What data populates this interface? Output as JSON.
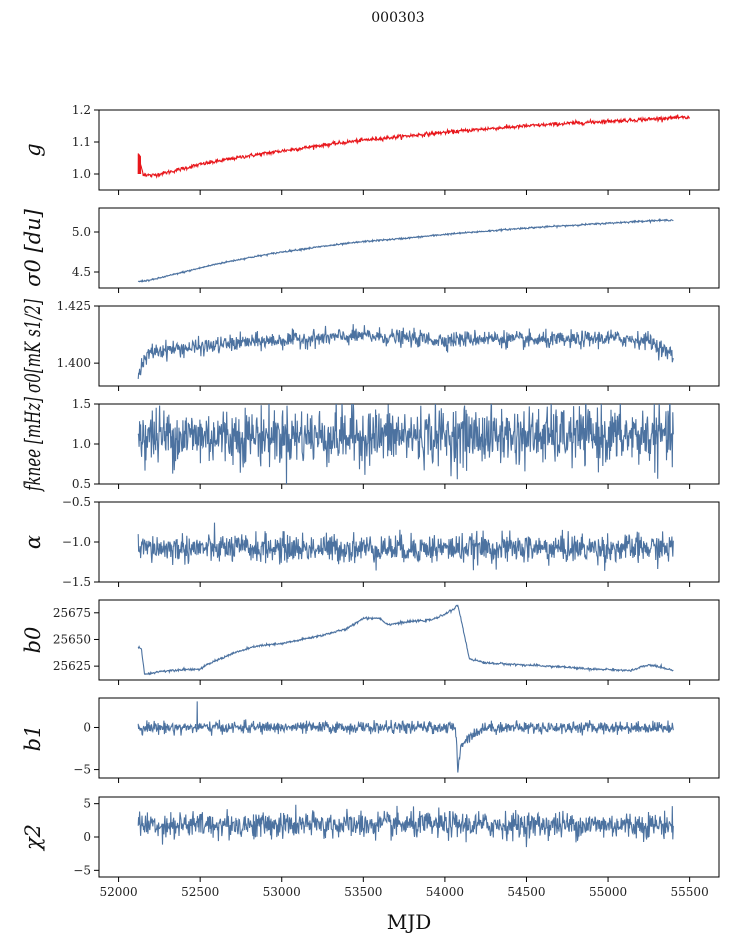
{
  "figure": {
    "title": "000303",
    "xlabel": "MJD"
  },
  "chart_data": [
    {
      "type": "line",
      "ylabel": "g",
      "ylim": [
        0.95,
        1.2
      ],
      "yticks": [
        1.0,
        1.1,
        1.2
      ],
      "ytick_labels": [
        "1.0",
        "1.1",
        "1.2"
      ],
      "xlim": [
        51880,
        55680
      ],
      "xticks": [
        52000,
        52500,
        53000,
        53500,
        54000,
        54500,
        55000,
        55500
      ],
      "show_xtick_labels": false,
      "series": [
        {
          "color": "#e8161b",
          "x": [
            52120,
            52150,
            52200,
            52300,
            52500,
            52750,
            53000,
            53250,
            53500,
            53750,
            54000,
            54250,
            54500,
            54750,
            55000,
            55250,
            55400,
            55500
          ],
          "y": [
            1.06,
            1.0,
            0.995,
            1.005,
            1.03,
            1.053,
            1.072,
            1.09,
            1.106,
            1.118,
            1.13,
            1.141,
            1.15,
            1.158,
            1.165,
            1.171,
            1.176,
            1.176
          ],
          "noise": 0.003
        }
      ],
      "overlays": [
        {
          "color": "#e8161b",
          "x_from": 52120,
          "x_to": 52135,
          "y_from": 1.0,
          "y_to": 1.065
        }
      ]
    },
    {
      "type": "line",
      "ylabel": "σ0 [du]",
      "ylim": [
        4.3,
        5.3
      ],
      "yticks": [
        4.5,
        5.0
      ],
      "ytick_labels": [
        "4.5",
        "5.0"
      ],
      "xlim": [
        51880,
        55680
      ],
      "xticks": [
        52000,
        52500,
        53000,
        53500,
        54000,
        54500,
        55000,
        55500
      ],
      "show_xtick_labels": false,
      "series": [
        {
          "color": "#4c72a0",
          "x": [
            52120,
            52200,
            52400,
            52600,
            52800,
            53000,
            53250,
            53500,
            53750,
            54000,
            54250,
            54500,
            54750,
            55000,
            55250,
            55400
          ],
          "y": [
            4.38,
            4.4,
            4.5,
            4.6,
            4.68,
            4.75,
            4.82,
            4.88,
            4.92,
            4.97,
            5.01,
            5.05,
            5.08,
            5.11,
            5.14,
            5.15
          ],
          "noise": 0.005
        }
      ]
    },
    {
      "type": "line",
      "ylabel": "σ0[mK s1/2]",
      "ylim": [
        1.39,
        1.425
      ],
      "yticks": [
        1.4,
        1.425
      ],
      "ytick_labels": [
        "1.400",
        "1.425"
      ],
      "xlim": [
        51880,
        55680
      ],
      "xticks": [
        52000,
        52500,
        53000,
        53500,
        54000,
        54500,
        55000,
        55500
      ],
      "show_xtick_labels": false,
      "series": [
        {
          "color": "#4c72a0",
          "x": [
            52120,
            52150,
            52200,
            52300,
            52500,
            52750,
            53000,
            53250,
            53500,
            53750,
            54000,
            54250,
            54500,
            54750,
            55000,
            55250,
            55400
          ],
          "y": [
            1.394,
            1.4,
            1.405,
            1.406,
            1.407,
            1.409,
            1.41,
            1.411,
            1.412,
            1.411,
            1.41,
            1.411,
            1.41,
            1.41,
            1.411,
            1.41,
            1.403
          ],
          "noise": 0.0018
        }
      ]
    },
    {
      "type": "line",
      "ylabel": "fknee [mHz]",
      "ylim": [
        0.5,
        1.5
      ],
      "yticks": [
        0.5,
        1.0,
        1.5
      ],
      "ytick_labels": [
        "0.5",
        "1.0",
        "1.5"
      ],
      "xlim": [
        51880,
        55680
      ],
      "xticks": [
        52000,
        52500,
        53000,
        53500,
        54000,
        54500,
        55000,
        55500
      ],
      "show_xtick_labels": false,
      "series": [
        {
          "color": "#4c72a0",
          "x": [
            52120,
            55400
          ],
          "y": [
            1.1,
            1.1
          ],
          "noise": 0.18
        }
      ]
    },
    {
      "type": "line",
      "ylabel": "α",
      "ylim": [
        -1.5,
        -0.5
      ],
      "yticks": [
        -1.5,
        -1.0,
        -0.5
      ],
      "ytick_labels": [
        "−1.5",
        "−1.0",
        "−0.5"
      ],
      "xlim": [
        51880,
        55680
      ],
      "xticks": [
        52000,
        52500,
        53000,
        53500,
        54000,
        54500,
        55000,
        55500
      ],
      "show_xtick_labels": false,
      "series": [
        {
          "color": "#4c72a0",
          "x": [
            52120,
            55400
          ],
          "y": [
            -1.08,
            -1.08
          ],
          "noise": 0.09
        }
      ]
    },
    {
      "type": "line",
      "ylabel": "b0",
      "ylim": [
        25612,
        25687
      ],
      "yticks": [
        25625,
        25650,
        25675
      ],
      "ytick_labels": [
        "25625",
        "25650",
        "25675"
      ],
      "xlim": [
        51880,
        55680
      ],
      "xticks": [
        52000,
        52500,
        53000,
        53500,
        54000,
        54500,
        55000,
        55500
      ],
      "show_xtick_labels": false,
      "series": [
        {
          "color": "#4c72a0",
          "x": [
            52120,
            52140,
            52160,
            52250,
            52400,
            52500,
            52550,
            52700,
            52850,
            53000,
            53250,
            53400,
            53500,
            53600,
            53650,
            53800,
            53900,
            53950,
            54050,
            54080,
            54100,
            54150,
            54250,
            54500,
            54750,
            54900,
            55000,
            55100,
            55150,
            55200,
            55250,
            55300,
            55400
          ],
          "y": [
            25643,
            25641,
            25617,
            25620,
            25622,
            25622,
            25627,
            25637,
            25644,
            25646,
            25654,
            25660,
            25670,
            25670,
            25664,
            25667,
            25668,
            25670,
            25678,
            25682,
            25668,
            25632,
            25628,
            25626,
            25624,
            25622,
            25622,
            25621,
            25621,
            25624,
            25626,
            25625,
            25621
          ],
          "noise": 0.5
        }
      ]
    },
    {
      "type": "line",
      "ylabel": "b1",
      "ylim": [
        -6,
        3.5
      ],
      "yticks": [
        -5,
        0
      ],
      "ytick_labels": [
        "−5",
        "0"
      ],
      "xlim": [
        51880,
        55680
      ],
      "xticks": [
        52000,
        52500,
        53000,
        53500,
        54000,
        54500,
        55000,
        55500
      ],
      "show_xtick_labels": false,
      "series": [
        {
          "color": "#4c72a0",
          "x": [
            52120,
            54060,
            54070,
            54080,
            54090,
            54100,
            54150,
            54200,
            54250,
            55400
          ],
          "y": [
            0.0,
            0.0,
            -1.0,
            -5.6,
            -3.5,
            -2.0,
            -1.0,
            -0.5,
            0.0,
            0.0
          ],
          "noise": 0.35
        },
        {
          "color": "#4c72a0",
          "x": [
            52480,
            52482,
            52484
          ],
          "y": [
            0.2,
            3.1,
            0.2
          ],
          "noise": 0
        }
      ]
    },
    {
      "type": "line",
      "ylabel": "χ2",
      "ylim": [
        -6,
        6
      ],
      "yticks": [
        -5,
        0,
        5
      ],
      "ytick_labels": [
        "−5",
        "0",
        "5"
      ],
      "xlim": [
        51880,
        55680
      ],
      "xticks": [
        52000,
        52500,
        53000,
        53500,
        54000,
        54500,
        55000,
        55500
      ],
      "xtick_labels": [
        "52000",
        "52500",
        "53000",
        "53500",
        "54000",
        "54500",
        "55000",
        "55500"
      ],
      "show_xtick_labels": true,
      "series": [
        {
          "color": "#4c72a0",
          "x": [
            52120,
            55400
          ],
          "y": [
            1.8,
            1.8
          ],
          "noise": 1.0
        }
      ]
    }
  ]
}
